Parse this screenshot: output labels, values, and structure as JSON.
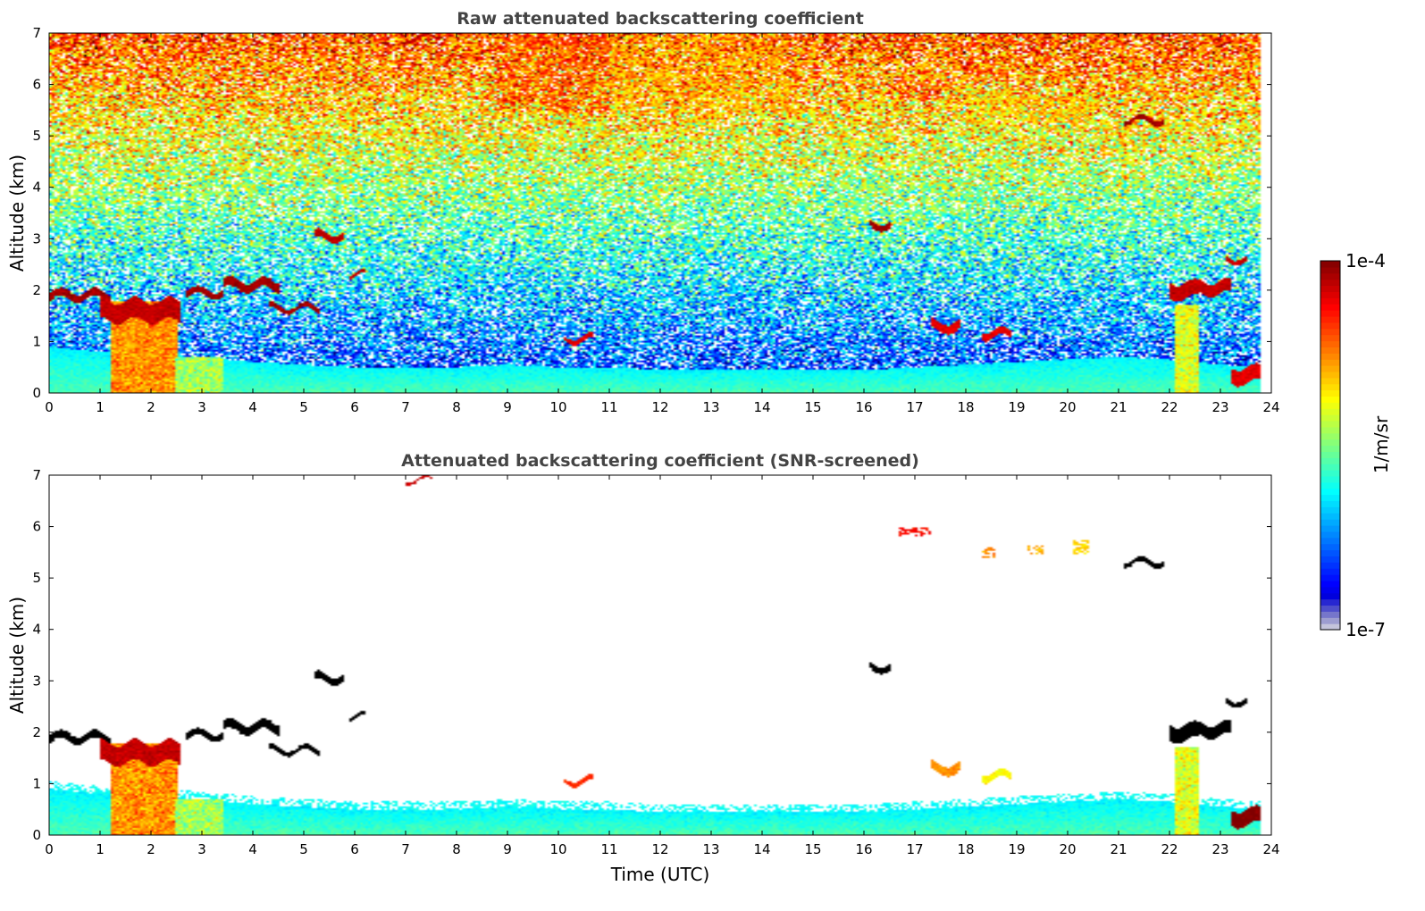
{
  "chart_data": [
    {
      "type": "heatmap",
      "title": "Raw attenuated backscattering coefficient",
      "xlabel": "",
      "ylabel": "Altitude (km)",
      "xlim": [
        0,
        24
      ],
      "ylim": [
        0,
        7
      ],
      "xticks": [
        "0",
        "1",
        "2",
        "3",
        "4",
        "5",
        "6",
        "7",
        "8",
        "9",
        "10",
        "11",
        "12",
        "13",
        "14",
        "15",
        "16",
        "17",
        "18",
        "19",
        "20",
        "21",
        "22",
        "23",
        "24"
      ],
      "yticks": [
        "0",
        "1",
        "2",
        "3",
        "4",
        "5",
        "6",
        "7"
      ],
      "noise": "dense speckle over the whole domain",
      "boundary_layer_top_km": [
        0.9,
        0.8,
        0.75,
        0.7,
        0.6,
        0.55,
        0.5,
        0.5,
        0.5,
        0.55,
        0.5,
        0.5,
        0.45,
        0.45,
        0.45,
        0.45,
        0.45,
        0.5,
        0.55,
        0.6,
        0.65,
        0.7,
        0.65,
        0.55,
        0.5
      ],
      "cloud_layers": [
        {
          "t_start": 0.0,
          "t_end": 1.2,
          "alt": 1.9,
          "thickness": 0.15,
          "value": -4.1
        },
        {
          "t_start": 1.0,
          "t_end": 2.6,
          "alt": 1.6,
          "thickness": 0.4,
          "value": -4.2
        },
        {
          "t_start": 2.7,
          "t_end": 3.4,
          "alt": 1.95,
          "thickness": 0.12,
          "value": -4.1
        },
        {
          "t_start": 3.4,
          "t_end": 4.5,
          "alt": 2.1,
          "thickness": 0.18,
          "value": -4.1
        },
        {
          "t_start": 4.3,
          "t_end": 5.3,
          "alt": 1.65,
          "thickness": 0.1,
          "value": -4.1
        },
        {
          "t_start": 5.2,
          "t_end": 5.8,
          "alt": 3.05,
          "thickness": 0.15,
          "value": -4.2
        },
        {
          "t_start": 5.9,
          "t_end": 6.2,
          "alt": 2.3,
          "thickness": 0.07,
          "value": -4.2
        },
        {
          "t_start": 7.0,
          "t_end": 7.5,
          "alt": 6.9,
          "thickness": 0.05,
          "value": -4.2
        },
        {
          "t_start": 10.1,
          "t_end": 10.7,
          "alt": 1.05,
          "thickness": 0.1,
          "value": -4.3
        },
        {
          "t_start": 16.1,
          "t_end": 16.5,
          "alt": 3.27,
          "thickness": 0.12,
          "value": -4.1
        },
        {
          "t_start": 17.3,
          "t_end": 17.9,
          "alt": 1.3,
          "thickness": 0.18,
          "value": -4.3
        },
        {
          "t_start": 18.3,
          "t_end": 18.9,
          "alt": 1.15,
          "thickness": 0.15,
          "value": -4.3
        },
        {
          "t_start": 21.1,
          "t_end": 21.9,
          "alt": 5.3,
          "thickness": 0.1,
          "value": -4.1
        },
        {
          "t_start": 22.0,
          "t_end": 22.6,
          "alt": 2.0,
          "thickness": 0.3,
          "value": -4.2
        },
        {
          "t_start": 22.6,
          "t_end": 23.2,
          "alt": 2.05,
          "thickness": 0.25,
          "value": -4.2
        },
        {
          "t_start": 23.1,
          "t_end": 23.5,
          "alt": 2.6,
          "thickness": 0.1,
          "value": -4.2
        },
        {
          "t_start": 23.2,
          "t_end": 23.8,
          "alt": 0.35,
          "thickness": 0.3,
          "value": -4.3
        }
      ],
      "precipitation_columns": [
        {
          "t_start": 1.2,
          "t_end": 2.5,
          "top_km": 1.8,
          "value": -4.8
        },
        {
          "t_start": 2.5,
          "t_end": 3.4,
          "top_km": 0.7,
          "value": -5.4
        },
        {
          "t_start": 22.1,
          "t_end": 22.6,
          "top_km": 1.7,
          "value": -5.2
        }
      ],
      "aerosol_layers": [
        {
          "t_start": 8.8,
          "t_end": 11.0,
          "alt": 6.2,
          "thickness": 1.5,
          "value": -4.6
        },
        {
          "t_start": 11.0,
          "t_end": 14.5,
          "alt": 6.2,
          "thickness": 1.5,
          "value": -4.9
        },
        {
          "t_start": 16.5,
          "t_end": 17.5,
          "alt": 5.9,
          "thickness": 0.4,
          "value": -4.6
        },
        {
          "t_start": 18.0,
          "t_end": 20.5,
          "alt": 5.5,
          "thickness": 0.5,
          "value": -5.0
        }
      ]
    },
    {
      "type": "heatmap",
      "title": "Attenuated backscattering coefficient (SNR-screened)",
      "xlabel": "Time (UTC)",
      "ylabel": "Altitude (km)",
      "xlim": [
        0,
        24
      ],
      "ylim": [
        0,
        7
      ],
      "xticks": [
        "0",
        "1",
        "2",
        "3",
        "4",
        "5",
        "6",
        "7",
        "8",
        "9",
        "10",
        "11",
        "12",
        "13",
        "14",
        "15",
        "16",
        "17",
        "18",
        "19",
        "20",
        "21",
        "22",
        "23",
        "24"
      ],
      "yticks": [
        "0",
        "1",
        "2",
        "3",
        "4",
        "5",
        "6",
        "7"
      ],
      "noise": "removed (screened to white)",
      "boundary_layer_top_km": [
        0.9,
        0.8,
        0.75,
        0.7,
        0.6,
        0.55,
        0.5,
        0.5,
        0.5,
        0.55,
        0.5,
        0.5,
        0.45,
        0.45,
        0.45,
        0.45,
        0.45,
        0.5,
        0.55,
        0.6,
        0.65,
        0.7,
        0.65,
        0.55,
        0.5
      ],
      "cloud_layers": [
        {
          "t_start": 0.0,
          "t_end": 1.2,
          "alt": 1.9,
          "thickness": 0.15,
          "value": -3.6
        },
        {
          "t_start": 1.0,
          "t_end": 2.6,
          "alt": 1.6,
          "thickness": 0.4,
          "value": -4.2
        },
        {
          "t_start": 2.7,
          "t_end": 3.4,
          "alt": 1.95,
          "thickness": 0.12,
          "value": -3.6
        },
        {
          "t_start": 3.4,
          "t_end": 4.5,
          "alt": 2.1,
          "thickness": 0.18,
          "value": -3.6
        },
        {
          "t_start": 4.3,
          "t_end": 5.3,
          "alt": 1.65,
          "thickness": 0.1,
          "value": -3.6
        },
        {
          "t_start": 5.2,
          "t_end": 5.8,
          "alt": 3.05,
          "thickness": 0.15,
          "value": -3.6
        },
        {
          "t_start": 5.9,
          "t_end": 6.2,
          "alt": 2.3,
          "thickness": 0.07,
          "value": -3.6
        },
        {
          "t_start": 7.0,
          "t_end": 7.5,
          "alt": 6.9,
          "thickness": 0.05,
          "value": -4.2
        },
        {
          "t_start": 10.1,
          "t_end": 10.7,
          "alt": 1.05,
          "thickness": 0.1,
          "value": -4.5
        },
        {
          "t_start": 16.1,
          "t_end": 16.5,
          "alt": 3.27,
          "thickness": 0.12,
          "value": -3.6
        },
        {
          "t_start": 17.3,
          "t_end": 17.9,
          "alt": 1.3,
          "thickness": 0.18,
          "value": -4.8
        },
        {
          "t_start": 18.3,
          "t_end": 18.9,
          "alt": 1.15,
          "thickness": 0.15,
          "value": -5.1
        },
        {
          "t_start": 21.1,
          "t_end": 21.9,
          "alt": 5.3,
          "thickness": 0.1,
          "value": -3.6
        },
        {
          "t_start": 22.0,
          "t_end": 22.6,
          "alt": 2.0,
          "thickness": 0.3,
          "value": -3.6
        },
        {
          "t_start": 22.6,
          "t_end": 23.2,
          "alt": 2.05,
          "thickness": 0.25,
          "value": -3.6
        },
        {
          "t_start": 23.1,
          "t_end": 23.5,
          "alt": 2.6,
          "thickness": 0.1,
          "value": -3.6
        },
        {
          "t_start": 23.2,
          "t_end": 23.8,
          "alt": 0.35,
          "thickness": 0.3,
          "value": -4.0
        }
      ],
      "precipitation_columns": [
        {
          "t_start": 1.2,
          "t_end": 2.5,
          "top_km": 1.8,
          "value": -4.8
        },
        {
          "t_start": 2.5,
          "t_end": 3.4,
          "top_km": 0.7,
          "value": -5.4
        },
        {
          "t_start": 22.1,
          "t_end": 22.6,
          "top_km": 1.7,
          "value": -5.2
        }
      ],
      "aerosol_layers": [
        {
          "t_start": 16.7,
          "t_end": 17.3,
          "alt": 5.9,
          "thickness": 0.15,
          "value": -4.4
        },
        {
          "t_start": 18.3,
          "t_end": 18.6,
          "alt": 5.5,
          "thickness": 0.2,
          "value": -4.8
        },
        {
          "t_start": 19.2,
          "t_end": 19.5,
          "alt": 5.55,
          "thickness": 0.2,
          "value": -4.9
        },
        {
          "t_start": 20.1,
          "t_end": 20.4,
          "alt": 5.6,
          "thickness": 0.3,
          "value": -5.0
        }
      ]
    }
  ],
  "colorbar": {
    "label": "1/m/sr",
    "max_label": "1e-4",
    "min_label": "1e-7",
    "scale": "log",
    "range": [
      -7,
      -4
    ],
    "colormap": "jet"
  },
  "colors": {
    "background": "#ffffff",
    "noise_background": "#ffffff",
    "strong_cloud_core": "#000000"
  }
}
